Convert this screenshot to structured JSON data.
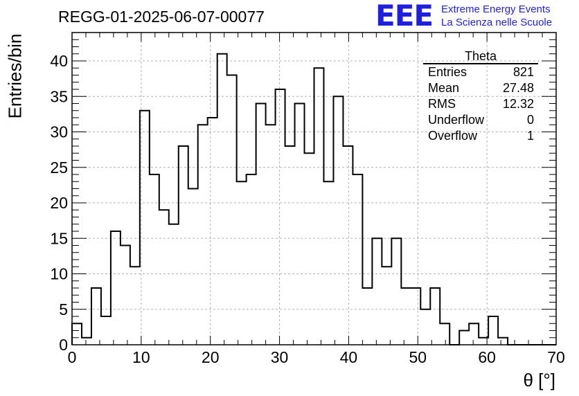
{
  "title": "REGG-01-2025-06-07-00077",
  "logo": {
    "mark": "EEE",
    "line1": "Extreme Energy Events",
    "line2": "La Scienza nelle Scuole",
    "color": "#1f1fe0"
  },
  "stats": {
    "title": "Theta",
    "rows": [
      {
        "label": "Entries",
        "value": "821"
      },
      {
        "label": "Mean",
        "value": "27.48"
      },
      {
        "label": "RMS",
        "value": "12.32"
      },
      {
        "label": "Underflow",
        "value": "0"
      },
      {
        "label": "Overflow",
        "value": "1"
      }
    ]
  },
  "chart_data": {
    "type": "histogram",
    "xlabel": "θ [°]",
    "ylabel": "Entries/bin",
    "xlim": [
      0,
      70
    ],
    "ylim": [
      0,
      44
    ],
    "bin_width": 1.4,
    "bin_edges_start": 0,
    "values": [
      3,
      1,
      8,
      4,
      16,
      14,
      11,
      33,
      24,
      19,
      17,
      28,
      22,
      31,
      32,
      41,
      38,
      23,
      24,
      34,
      31,
      36,
      28,
      34,
      27,
      39,
      23,
      35,
      28,
      24,
      8,
      15,
      11,
      15,
      8,
      8,
      5,
      8,
      3,
      0,
      2,
      3,
      1,
      4,
      1,
      0,
      0,
      0,
      0,
      0
    ],
    "xticks": [
      0,
      10,
      20,
      30,
      40,
      50,
      60,
      70
    ],
    "yticks": [
      0,
      5,
      10,
      15,
      20,
      25,
      30,
      35,
      40
    ],
    "grid": true,
    "line_color": "#000000"
  }
}
